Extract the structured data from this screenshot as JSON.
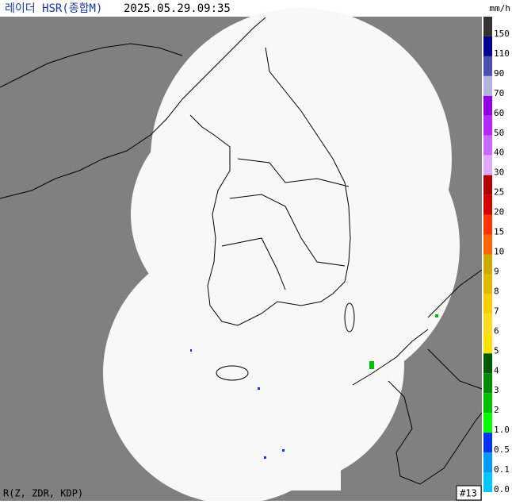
{
  "header": {
    "title": "레이더 HSR(종합M)",
    "time": "2025.05.29.09:35",
    "unit": "mm/h"
  },
  "legend": {
    "items": [
      {
        "label": "150",
        "color": "#333333"
      },
      {
        "label": "110",
        "color": "#000390"
      },
      {
        "label": "90",
        "color": "#4c4eb1"
      },
      {
        "label": "70",
        "color": "#b3b4de"
      },
      {
        "label": "60",
        "color": "#9300e4"
      },
      {
        "label": "50",
        "color": "#b329ff"
      },
      {
        "label": "40",
        "color": "#c969ff"
      },
      {
        "label": "30",
        "color": "#e0a9ff"
      },
      {
        "label": "25",
        "color": "#b40000"
      },
      {
        "label": "20",
        "color": "#d20000"
      },
      {
        "label": "15",
        "color": "#ff3300"
      },
      {
        "label": "10",
        "color": "#ff6600"
      },
      {
        "label": "9",
        "color": "#ccaa00"
      },
      {
        "label": "8",
        "color": "#e0b900"
      },
      {
        "label": "7",
        "color": "#f9cd00"
      },
      {
        "label": "6",
        "color": "#ffdc1f"
      },
      {
        "label": "5",
        "color": "#ffe100"
      },
      {
        "label": "4",
        "color": "#005a00"
      },
      {
        "label": "3",
        "color": "#008c00"
      },
      {
        "label": "2",
        "color": "#00be00"
      },
      {
        "label": "1.0",
        "color": "#00ff00"
      },
      {
        "label": "0.5",
        "color": "#0033f5"
      },
      {
        "label": "0.1",
        "color": "#009bf5"
      },
      {
        "label": "0.0",
        "color": "#00c8ff"
      }
    ]
  },
  "footer": {
    "method": "R(Z, ZDR, KDP)",
    "frame": "#13"
  }
}
